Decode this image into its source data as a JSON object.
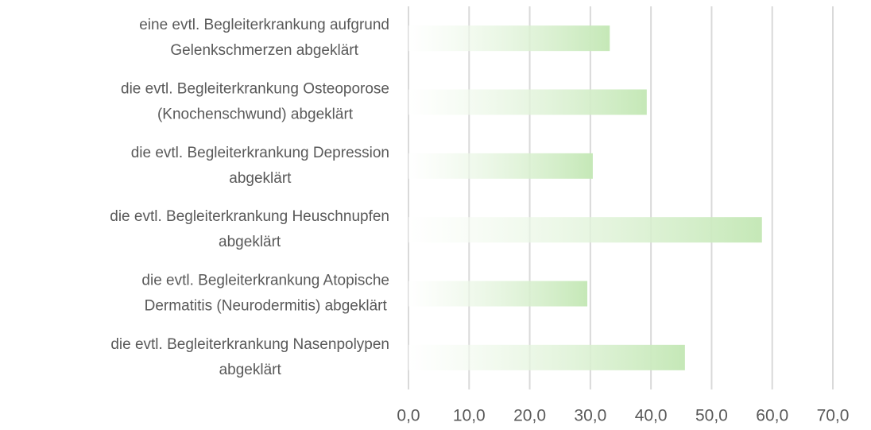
{
  "chart_data": {
    "type": "bar",
    "orientation": "horizontal",
    "categories": [
      [
        "eine evtl. Begleiterkrankung aufgrund",
        "Gelenkschmerzen abgeklärt"
      ],
      [
        "die evtl. Begleiterkrankung Osteoporose",
        "(Knochenschwund) abgeklärt"
      ],
      [
        "die evtl. Begleiterkrankung Depression",
        "abgeklärt"
      ],
      [
        "die evtl. Begleiterkrankung Heuschnupfen",
        "abgeklärt"
      ],
      [
        "die evtl. Begleiterkrankung Atopische",
        "Dermatitis (Neurodermitis) abgeklärt"
      ],
      [
        "die evtl. Begleiterkrankung Nasenpolypen",
        "abgeklärt"
      ]
    ],
    "values": [
      33.2,
      39.3,
      30.4,
      58.3,
      29.5,
      45.6
    ],
    "color": "#c5e8b7",
    "xlim": [
      0,
      70
    ],
    "xticks": [
      {
        "value": 0,
        "label": "0,0"
      },
      {
        "value": 10,
        "label": "10,0"
      },
      {
        "value": 20,
        "label": "20,0"
      },
      {
        "value": 30,
        "label": "30,0"
      },
      {
        "value": 40,
        "label": "40,0"
      },
      {
        "value": 50,
        "label": "50,0"
      },
      {
        "value": 60,
        "label": "60,0"
      },
      {
        "value": 70,
        "label": "70,0"
      }
    ],
    "grid": true
  }
}
